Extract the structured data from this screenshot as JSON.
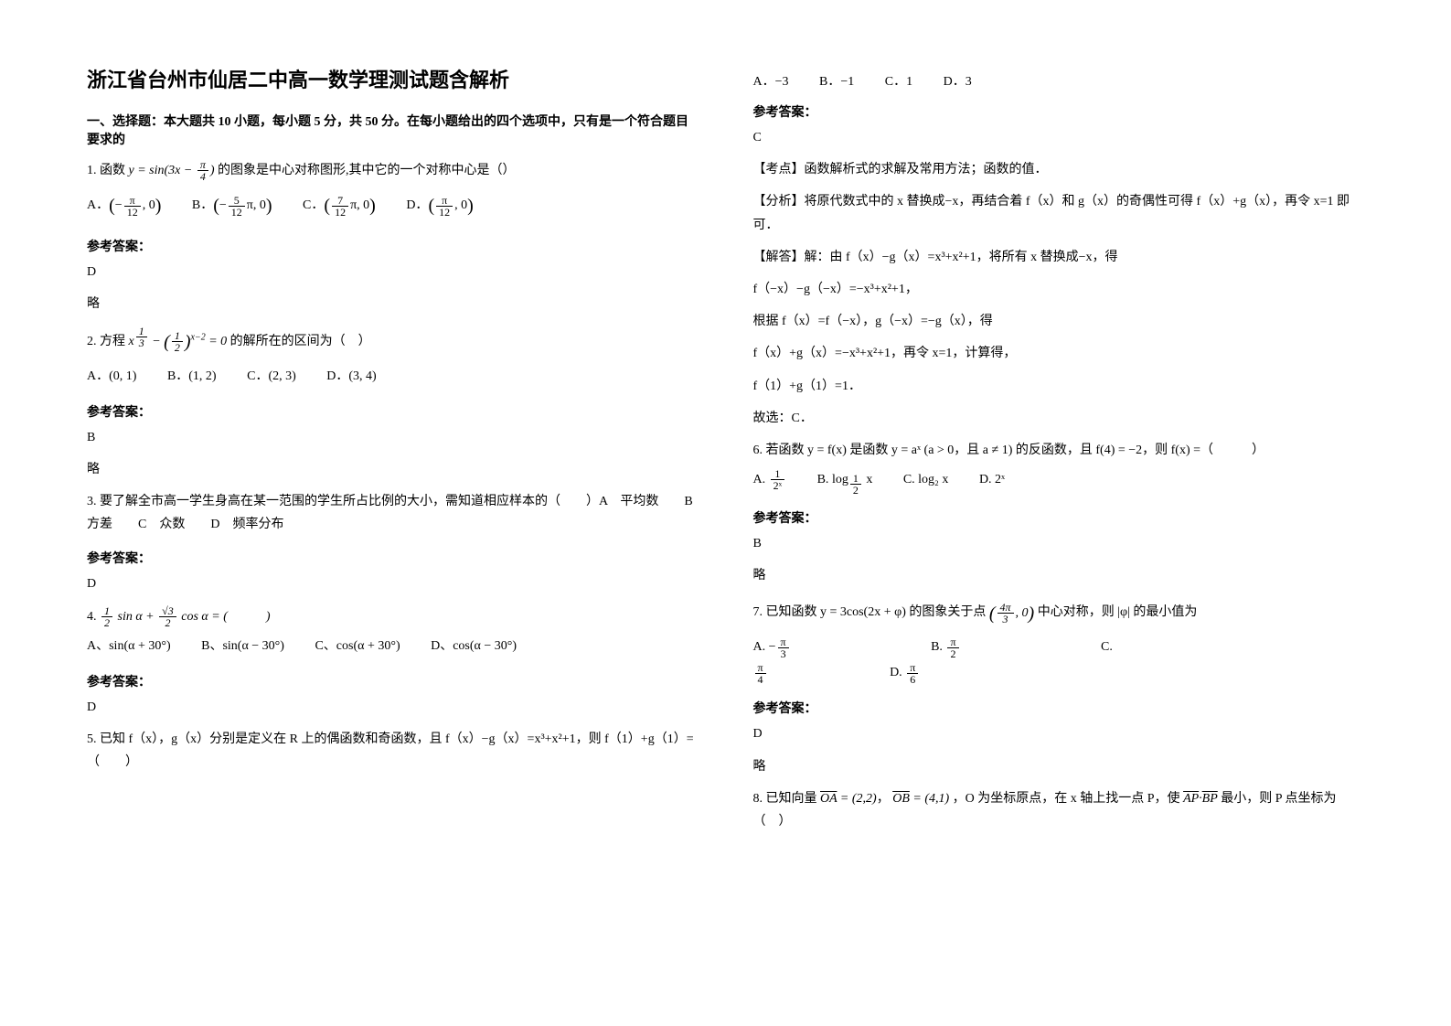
{
  "title": "浙江省台州市仙居二中高一数学理测试题含解析",
  "section1": {
    "header": "一、选择题：本大题共 10 小题，每小题 5 分，共 50 分。在每小题给出的四个选项中，只有是一个符合题目要求的",
    "q1": {
      "stem_prefix": "1. 函数",
      "formula": "y = sin(3x − π/4)",
      "stem_suffix": "的图象是中心对称图形,其中它的一个对称中心是（）",
      "optA_label": "A．",
      "optB_label": "B．",
      "optC_label": "C．",
      "optD_label": "D．",
      "answer_label": "参考答案：",
      "answer": "D",
      "note": "略"
    },
    "q2": {
      "stem_prefix": "2. 方程",
      "stem_suffix": "的解所在的区间为（　）",
      "optA": "A．(0, 1)",
      "optB": "B．(1, 2)",
      "optC": "C．(2, 3)",
      "optD": "D．(3, 4)",
      "answer_label": "参考答案：",
      "answer": "B",
      "note": "略"
    },
    "q3": {
      "stem": "3. 要了解全市高一学生身高在某一范围的学生所占比例的大小，需知道相应样本的（　　）A　平均数　　B　方差　　C　众数　　D　频率分布",
      "answer_label": "参考答案：",
      "answer": "D"
    },
    "q4": {
      "stem_prefix": "4.",
      "optA": "A、sin(α + 30°)",
      "optB": "B、sin(α − 30°)",
      "optC": "C、cos(α + 30°)",
      "optD": "D、cos(α − 30°)",
      "answer_label": "参考答案：",
      "answer": "D"
    },
    "q5": {
      "stem": "5. 已知 f（x），g（x）分别是定义在 R 上的偶函数和奇函数，且 f（x）−g（x）=x³+x²+1，则 f（1）+g（1）=（　　）",
      "optA": "A．−3",
      "optB": "B．−1",
      "optC": "C．1",
      "optD": "D．3",
      "answer_label": "参考答案：",
      "answer": "C",
      "analysis_label": "【考点】函数解析式的求解及常用方法；函数的值．",
      "analysis1": "【分析】将原代数式中的 x 替换成−x，再结合着 f（x）和 g（x）的奇偶性可得 f（x）+g（x），再令 x=1 即可．",
      "analysis2": "【解答】解：由 f（x）−g（x）=x³+x²+1，将所有 x 替换成−x，得",
      "analysis3": "f（−x）−g（−x）=−x³+x²+1，",
      "analysis4": "根据 f（x）=f（−x），g（−x）=−g（x），得",
      "analysis5": "f（x）+g（x）=−x³+x²+1，再令 x=1，计算得，",
      "analysis6": "f（1）+g（1）=1．",
      "analysis7": "故选：C．"
    },
    "q6": {
      "stem_prefix": "6. 若函数 y = f(x) 是函数 y = aˣ (a > 0，且 a ≠ 1) 的反函数，且 f(4) = −2，则 f(x) =（　　　）",
      "optA_label": "A.",
      "optB_label": "B.",
      "optC_label": "C. log₂ x",
      "optD_label": "D. 2ˣ",
      "answer_label": "参考答案：",
      "answer": "B",
      "note": "略"
    },
    "q7": {
      "stem_prefix": "7. 已知函数 y = 3cos(2x + φ) 的图象关于点",
      "stem_suffix": "中心对称，则 |φ| 的最小值为",
      "optA_label": "A.",
      "optB_label": "B.",
      "optC_label": "C.",
      "optD_label": "D.",
      "answer_label": "参考答案：",
      "answer": "D",
      "note": "略"
    },
    "q8": {
      "stem_prefix": "8. 已知向量",
      "oa": "OA = (2,2)",
      "ob": "OB = (4,1)",
      "stem_mid": "，O 为坐标原点，在 x 轴上找一点 P，使",
      "stem_end": "最小，则 P 点坐标为（　）"
    }
  }
}
